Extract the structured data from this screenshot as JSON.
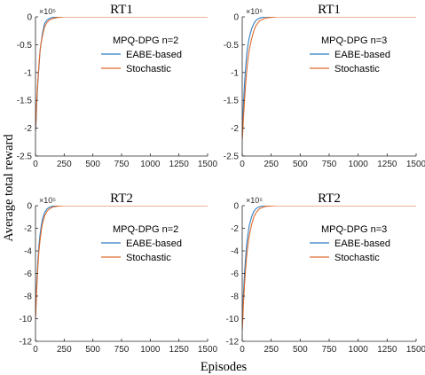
{
  "figure": {
    "ylabel": "Average total reward",
    "xlabel": "Episodes"
  },
  "colors": {
    "eabe": "#2f7ec2",
    "stochastic": "#e06a2c"
  },
  "chart_data": [
    {
      "type": "line",
      "title": "RT1",
      "legend_title": "MPQ-DPG n=2",
      "legend_position": "top-right",
      "y_multiplier_label": "×10⁵",
      "xlim": [
        0,
        1500
      ],
      "ylim": [
        -2.5,
        0
      ],
      "x_ticks": [
        "0",
        "250",
        "500",
        "750",
        "1000",
        "1250",
        "1500"
      ],
      "y_ticks": [
        "0",
        "-0.5",
        "-1",
        "-1.5",
        "-2",
        "-2.5"
      ],
      "series": [
        {
          "name": "EABE-based",
          "x": [
            0,
            5,
            10,
            20,
            30,
            40,
            50,
            60,
            70,
            80,
            100,
            120,
            150,
            200,
            250,
            300,
            1500
          ],
          "y": [
            -2.05,
            -1.9,
            -1.6,
            -1.2,
            -0.9,
            -0.6,
            -0.45,
            -0.3,
            -0.2,
            -0.12,
            -0.06,
            -0.03,
            -0.01,
            0,
            0,
            0,
            0
          ]
        },
        {
          "name": "Stochastic",
          "x": [
            0,
            5,
            10,
            20,
            30,
            40,
            50,
            60,
            70,
            80,
            100,
            120,
            150,
            200,
            250,
            300,
            1500
          ],
          "y": [
            -2.0,
            -1.85,
            -1.55,
            -1.15,
            -0.85,
            -0.6,
            -0.45,
            -0.35,
            -0.25,
            -0.18,
            -0.1,
            -0.06,
            -0.03,
            -0.01,
            0,
            0,
            0
          ]
        }
      ]
    },
    {
      "type": "line",
      "title": "RT1",
      "legend_title": "MPQ-DPG n=3",
      "legend_position": "top-right",
      "y_multiplier_label": "×10⁵",
      "xlim": [
        0,
        1500
      ],
      "ylim": [
        -2.5,
        0
      ],
      "x_ticks": [
        "0",
        "250",
        "500",
        "750",
        "1000",
        "1250",
        "1500"
      ],
      "y_ticks": [
        "0",
        "-0.5",
        "-1",
        "-1.5",
        "-2",
        "-2.5"
      ],
      "series": [
        {
          "name": "EABE-based",
          "x": [
            0,
            5,
            10,
            20,
            30,
            40,
            50,
            60,
            80,
            100,
            120,
            150,
            200,
            250,
            300,
            1500
          ],
          "y": [
            -2.1,
            -1.9,
            -1.6,
            -1.2,
            -0.9,
            -0.65,
            -0.5,
            -0.38,
            -0.22,
            -0.12,
            -0.06,
            -0.02,
            0,
            0,
            0,
            0
          ]
        },
        {
          "name": "Stochastic",
          "x": [
            0,
            5,
            10,
            20,
            30,
            40,
            50,
            60,
            80,
            100,
            120,
            150,
            200,
            250,
            300,
            1500
          ],
          "y": [
            -2.2,
            -2.05,
            -1.85,
            -1.5,
            -1.2,
            -0.95,
            -0.75,
            -0.6,
            -0.4,
            -0.25,
            -0.15,
            -0.07,
            -0.02,
            -0.01,
            0,
            0
          ]
        }
      ]
    },
    {
      "type": "line",
      "title": "RT2",
      "legend_title": "MPQ-DPG n=2",
      "legend_position": "top-right",
      "y_multiplier_label": "×10⁵",
      "xlim": [
        0,
        1500
      ],
      "ylim": [
        -12,
        0
      ],
      "x_ticks": [
        "0",
        "250",
        "500",
        "750",
        "1000",
        "1250",
        "1500"
      ],
      "y_ticks": [
        "0",
        "-2",
        "-4",
        "-6",
        "-8",
        "-10",
        "-12"
      ],
      "series": [
        {
          "name": "EABE-based",
          "x": [
            0,
            5,
            10,
            20,
            30,
            40,
            50,
            60,
            80,
            100,
            120,
            150,
            200,
            250,
            300,
            1500
          ],
          "y": [
            -9.8,
            -8.5,
            -7,
            -5,
            -3.5,
            -2.5,
            -1.8,
            -1.2,
            -0.6,
            -0.3,
            -0.15,
            -0.05,
            0,
            0,
            0,
            0
          ]
        },
        {
          "name": "Stochastic",
          "x": [
            0,
            5,
            10,
            20,
            30,
            40,
            50,
            60,
            80,
            100,
            120,
            150,
            200,
            250,
            300,
            1500
          ],
          "y": [
            -10,
            -9,
            -7.5,
            -5.5,
            -4,
            -3,
            -2.2,
            -1.6,
            -0.9,
            -0.5,
            -0.3,
            -0.12,
            -0.03,
            0,
            0,
            0
          ]
        }
      ]
    },
    {
      "type": "line",
      "title": "RT2",
      "legend_title": "MPQ-DPG n=3",
      "legend_position": "top-right",
      "y_multiplier_label": "×10⁵",
      "xlim": [
        0,
        1500
      ],
      "ylim": [
        -12,
        0
      ],
      "x_ticks": [
        "0",
        "250",
        "500",
        "750",
        "1000",
        "1250",
        "1500"
      ],
      "y_ticks": [
        "0",
        "-2",
        "-4",
        "-6",
        "-8",
        "-10",
        "-12"
      ],
      "series": [
        {
          "name": "EABE-based",
          "x": [
            0,
            5,
            10,
            20,
            30,
            40,
            50,
            60,
            80,
            100,
            120,
            150,
            200,
            250,
            300,
            1500
          ],
          "y": [
            -10.5,
            -9.5,
            -8,
            -6,
            -4.5,
            -3.3,
            -2.5,
            -1.8,
            -1.0,
            -0.5,
            -0.25,
            -0.08,
            0,
            0,
            0,
            0
          ]
        },
        {
          "name": "Stochastic",
          "x": [
            0,
            5,
            10,
            20,
            30,
            40,
            50,
            60,
            80,
            100,
            120,
            150,
            200,
            250,
            300,
            1500
          ],
          "y": [
            -11,
            -10,
            -8.8,
            -7,
            -5.5,
            -4.3,
            -3.4,
            -2.7,
            -1.7,
            -1.0,
            -0.6,
            -0.25,
            -0.06,
            -0.02,
            0,
            0
          ]
        }
      ]
    }
  ]
}
